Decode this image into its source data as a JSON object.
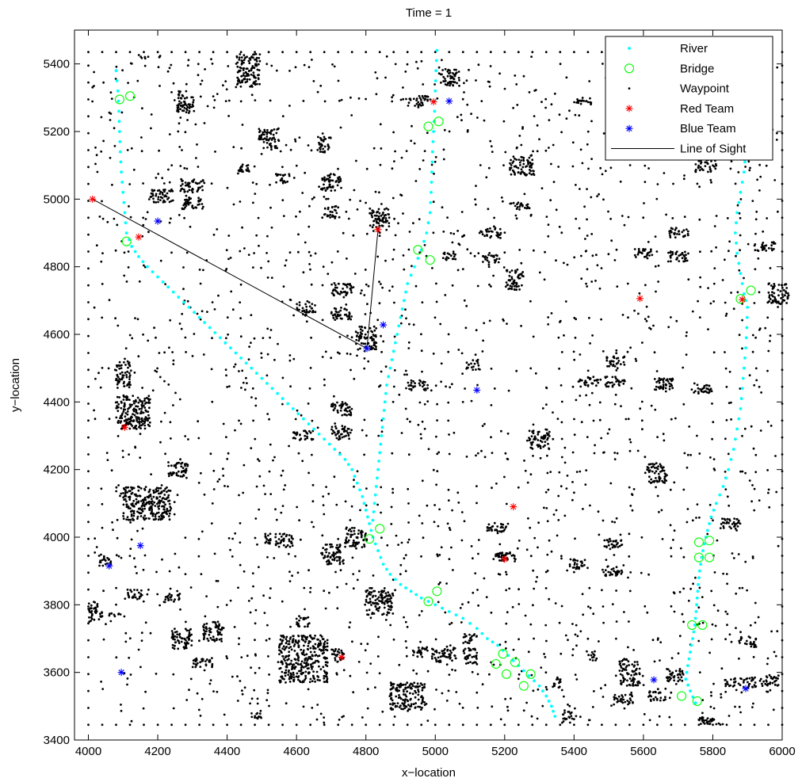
{
  "chart_data": {
    "type": "scatter",
    "title": "Time = 1",
    "xlabel": "x−location",
    "ylabel": "y−location",
    "xlim": [
      3960,
      6000
    ],
    "ylim": [
      3400,
      5500
    ],
    "xticks": [
      4000,
      4200,
      4400,
      4600,
      4800,
      5000,
      5200,
      5400,
      5600,
      5800,
      6000
    ],
    "yticks": [
      3400,
      3600,
      3800,
      4000,
      4200,
      4400,
      4600,
      4800,
      5000,
      5200,
      5400
    ],
    "grid": false,
    "legend_position": "top-right",
    "legend": [
      {
        "key": "river",
        "label": "River"
      },
      {
        "key": "bridge",
        "label": "Bridge"
      },
      {
        "key": "waypoint",
        "label": "Waypoint"
      },
      {
        "key": "red",
        "label": "Red Team"
      },
      {
        "key": "blue",
        "label": "Blue Team"
      },
      {
        "key": "los",
        "label": "Line of Sight"
      }
    ],
    "colors": {
      "river": "#00ffff",
      "bridge": "#00ff00",
      "waypoint": "#000000",
      "red": "#ff0000",
      "blue": "#0000ff",
      "los": "#000000"
    },
    "river": [
      [
        [
          4080,
          5380
        ],
        [
          4085,
          5320
        ],
        [
          4088,
          5260
        ],
        [
          4090,
          5200
        ],
        [
          4092,
          5140
        ],
        [
          4095,
          5080
        ],
        [
          4100,
          5020
        ],
        [
          4105,
          4960
        ],
        [
          4110,
          4900
        ],
        [
          4125,
          4860
        ],
        [
          4145,
          4830
        ],
        [
          4170,
          4800
        ],
        [
          4200,
          4770
        ],
        [
          4230,
          4740
        ],
        [
          4260,
          4710
        ],
        [
          4290,
          4680
        ],
        [
          4320,
          4650
        ],
        [
          4350,
          4620
        ],
        [
          4380,
          4590
        ],
        [
          4410,
          4560
        ],
        [
          4440,
          4530
        ],
        [
          4470,
          4500
        ],
        [
          4500,
          4470
        ],
        [
          4530,
          4440
        ],
        [
          4560,
          4410
        ],
        [
          4590,
          4380
        ],
        [
          4620,
          4350
        ],
        [
          4650,
          4320
        ],
        [
          4680,
          4290
        ],
        [
          4710,
          4260
        ],
        [
          4740,
          4230
        ],
        [
          4760,
          4200
        ],
        [
          4775,
          4160
        ],
        [
          4790,
          4120
        ],
        [
          4800,
          4080
        ],
        [
          4810,
          4040
        ],
        [
          4820,
          4000
        ],
        [
          4835,
          3960
        ],
        [
          4850,
          3920
        ],
        [
          4870,
          3890
        ],
        [
          4900,
          3860
        ],
        [
          4930,
          3840
        ],
        [
          4960,
          3820
        ],
        [
          5000,
          3800
        ],
        [
          5040,
          3780
        ],
        [
          5080,
          3760
        ],
        [
          5120,
          3730
        ],
        [
          5150,
          3700
        ],
        [
          5180,
          3680
        ],
        [
          5210,
          3650
        ],
        [
          5240,
          3620
        ],
        [
          5270,
          3590
        ],
        [
          5300,
          3560
        ],
        [
          5320,
          3530
        ],
        [
          5335,
          3500
        ],
        [
          5345,
          3470
        ]
      ],
      [
        [
          5005,
          5440
        ],
        [
          5002,
          5380
        ],
        [
          5000,
          5320
        ],
        [
          4998,
          5260
        ],
        [
          4995,
          5200
        ],
        [
          4992,
          5140
        ],
        [
          4990,
          5080
        ],
        [
          4988,
          5020
        ],
        [
          4985,
          4960
        ],
        [
          4975,
          4900
        ],
        [
          4960,
          4850
        ],
        [
          4940,
          4800
        ],
        [
          4920,
          4750
        ],
        [
          4910,
          4700
        ],
        [
          4900,
          4650
        ],
        [
          4890,
          4600
        ],
        [
          4880,
          4550
        ],
        [
          4870,
          4500
        ],
        [
          4860,
          4450
        ],
        [
          4855,
          4400
        ],
        [
          4850,
          4350
        ],
        [
          4845,
          4300
        ],
        [
          4840,
          4250
        ],
        [
          4835,
          4200
        ],
        [
          4830,
          4150
        ],
        [
          4825,
          4100
        ],
        [
          4820,
          4050
        ]
      ],
      [
        [
          5900,
          5200
        ],
        [
          5895,
          5140
        ],
        [
          5890,
          5080
        ],
        [
          5880,
          5020
        ],
        [
          5870,
          4960
        ],
        [
          5865,
          4900
        ],
        [
          5870,
          4840
        ],
        [
          5880,
          4780
        ],
        [
          5890,
          4720
        ],
        [
          5900,
          4680
        ],
        [
          5898,
          4620
        ],
        [
          5895,
          4560
        ],
        [
          5890,
          4500
        ],
        [
          5885,
          4440
        ],
        [
          5880,
          4380
        ],
        [
          5870,
          4320
        ],
        [
          5860,
          4260
        ],
        [
          5845,
          4200
        ],
        [
          5830,
          4150
        ],
        [
          5810,
          4100
        ],
        [
          5795,
          4060
        ],
        [
          5785,
          4020
        ],
        [
          5775,
          3980
        ],
        [
          5768,
          3940
        ],
        [
          5762,
          3900
        ],
        [
          5758,
          3860
        ],
        [
          5755,
          3820
        ],
        [
          5752,
          3780
        ],
        [
          5748,
          3740
        ],
        [
          5742,
          3700
        ],
        [
          5735,
          3660
        ],
        [
          5728,
          3620
        ],
        [
          5722,
          3580
        ],
        [
          5735,
          3545
        ],
        [
          5750,
          3510
        ]
      ]
    ],
    "bridges": [
      [
        4090,
        5295
      ],
      [
        4120,
        5305
      ],
      [
        4110,
        4875
      ],
      [
        4980,
        5215
      ],
      [
        5010,
        5230
      ],
      [
        4950,
        4850
      ],
      [
        4985,
        4820
      ],
      [
        4810,
        3995
      ],
      [
        4840,
        4025
      ],
      [
        4980,
        3810
      ],
      [
        5005,
        3840
      ],
      [
        5175,
        3625
      ],
      [
        5195,
        3655
      ],
      [
        5205,
        3595
      ],
      [
        5230,
        3630
      ],
      [
        5255,
        3560
      ],
      [
        5275,
        3595
      ],
      [
        5710,
        3530
      ],
      [
        5755,
        3515
      ],
      [
        5740,
        3740
      ],
      [
        5770,
        3740
      ],
      [
        5760,
        3985
      ],
      [
        5790,
        3990
      ],
      [
        5760,
        3940
      ],
      [
        5790,
        3940
      ],
      [
        5880,
        4705
      ],
      [
        5910,
        4730
      ]
    ],
    "red_team": [
      [
        4012,
        5000
      ],
      [
        4145,
        4888
      ],
      [
        4835,
        4910
      ],
      [
        4995,
        5288
      ],
      [
        5590,
        4706
      ],
      [
        5885,
        4703
      ],
      [
        4105,
        4325
      ],
      [
        5225,
        4090
      ],
      [
        5200,
        3935
      ],
      [
        4730,
        3645
      ]
    ],
    "blue_team": [
      [
        4200,
        4935
      ],
      [
        4803,
        4558
      ],
      [
        4850,
        4628
      ],
      [
        5040,
        5290
      ],
      [
        5120,
        4435
      ],
      [
        4150,
        3975
      ],
      [
        4060,
        3915
      ],
      [
        4095,
        3600
      ],
      [
        5630,
        3578
      ],
      [
        5895,
        3552
      ]
    ],
    "line_of_sight": [
      [
        [
          4012,
          5000
        ],
        [
          4803,
          4558
        ]
      ],
      [
        [
          4835,
          4910
        ],
        [
          4803,
          4558
        ]
      ]
    ],
    "waypoint_grid": {
      "x_start": 4000,
      "x_end": 6000,
      "x_step": 40,
      "y_start": 3445,
      "y_end": 5435,
      "y_step": 50
    }
  }
}
